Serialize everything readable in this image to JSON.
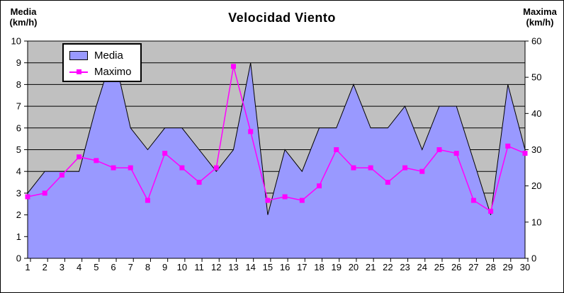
{
  "chart": {
    "title": "Velocidad Viento",
    "left_header_line1": "Media",
    "left_header_line2": "(km/h)",
    "right_header_line1": "Maxima",
    "right_header_line2": "(km/h)",
    "legend": {
      "media_label": "Media",
      "maximo_label": "Maximo"
    }
  },
  "chart_data": {
    "type": "area",
    "title": "Velocidad Viento",
    "x": [
      1,
      2,
      3,
      4,
      5,
      6,
      7,
      8,
      9,
      10,
      11,
      12,
      13,
      14,
      15,
      16,
      17,
      18,
      19,
      20,
      21,
      22,
      23,
      24,
      25,
      26,
      27,
      28,
      29,
      30
    ],
    "series": [
      {
        "name": "Media",
        "type": "area",
        "axis": "left",
        "color": "#9999FF",
        "outline": "#000000",
        "values": [
          3,
          4,
          4,
          4,
          7,
          9.5,
          6,
          5,
          6,
          6,
          5,
          4,
          5,
          9,
          2,
          5,
          4,
          6,
          6,
          8,
          6,
          6,
          7,
          5,
          7,
          7,
          4.5,
          2,
          8,
          5
        ]
      },
      {
        "name": "Maximo",
        "type": "line",
        "axis": "right",
        "color": "#FF00FF",
        "marker": "square",
        "values": [
          17,
          18,
          23,
          28,
          27,
          25,
          25,
          16,
          29,
          25,
          21,
          25,
          53,
          35,
          16,
          17,
          16,
          20,
          30,
          25,
          25,
          21,
          25,
          24,
          30,
          29,
          16,
          13,
          31,
          29
        ]
      }
    ],
    "left_axis": {
      "label": "Media (km/h)",
      "min": 0,
      "max": 10,
      "ticks": [
        0,
        1,
        2,
        3,
        4,
        5,
        6,
        7,
        8,
        9,
        10
      ]
    },
    "right_axis": {
      "label": "Maxima (km/h)",
      "min": 0,
      "max": 60,
      "ticks": [
        0,
        10,
        20,
        30,
        40,
        50,
        60
      ]
    },
    "plot_bg": "#C0C0C0",
    "grid": true,
    "gridline_color": "#000000",
    "legend_position": "top-left-inside"
  }
}
